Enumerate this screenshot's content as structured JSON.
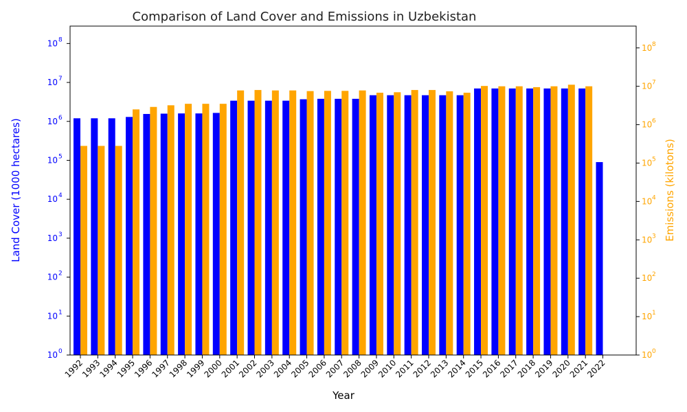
{
  "chart_data": {
    "type": "bar",
    "title": "Comparison of Land Cover and Emissions in Uzbekistan",
    "xlabel": "Year",
    "ylabel_left": "Land Cover (1000 hectares)",
    "ylabel_right": "Emissions (kilotons)",
    "yscale": "log",
    "ylim_left": [
      1,
      280000000
    ],
    "ylim_right": [
      1,
      370000000
    ],
    "grid": false,
    "categories": [
      "1992",
      "1993",
      "1994",
      "1995",
      "1996",
      "1997",
      "1998",
      "1999",
      "2000",
      "2001",
      "2002",
      "2003",
      "2004",
      "2005",
      "2006",
      "2007",
      "2008",
      "2009",
      "2010",
      "2011",
      "2012",
      "2013",
      "2014",
      "2015",
      "2016",
      "2017",
      "2018",
      "2019",
      "2020",
      "2021",
      "2022"
    ],
    "series": [
      {
        "name": "Land Cover",
        "axis": "left",
        "color": "#0000ff",
        "values": [
          1200000,
          1200000,
          1200000,
          1300000,
          1550000,
          1580000,
          1600000,
          1600000,
          1650000,
          3400000,
          3400000,
          3400000,
          3400000,
          3700000,
          3800000,
          3800000,
          3800000,
          4700000,
          4700000,
          4700000,
          4700000,
          4700000,
          4700000,
          7000000,
          7000000,
          7000000,
          7000000,
          7000000,
          7000000,
          7000000,
          90000
        ]
      },
      {
        "name": "Emissions",
        "axis": "right",
        "color": "#ffa500",
        "values": [
          280000,
          280000,
          280000,
          2500000,
          2900000,
          3200000,
          3500000,
          3500000,
          3500000,
          7800000,
          8000000,
          7800000,
          7800000,
          7500000,
          7600000,
          7600000,
          7800000,
          6800000,
          7000000,
          8000000,
          8000000,
          7400000,
          6800000,
          10200000,
          10000000,
          10000000,
          9500000,
          10000000,
          11000000,
          10000000,
          null
        ]
      }
    ]
  },
  "ticks": {
    "left": [
      "10",
      "10",
      "10",
      "10",
      "10",
      "10",
      "10",
      "10",
      "10"
    ],
    "right": [
      "10",
      "10",
      "10",
      "10",
      "10",
      "10",
      "10",
      "10",
      "10"
    ]
  }
}
